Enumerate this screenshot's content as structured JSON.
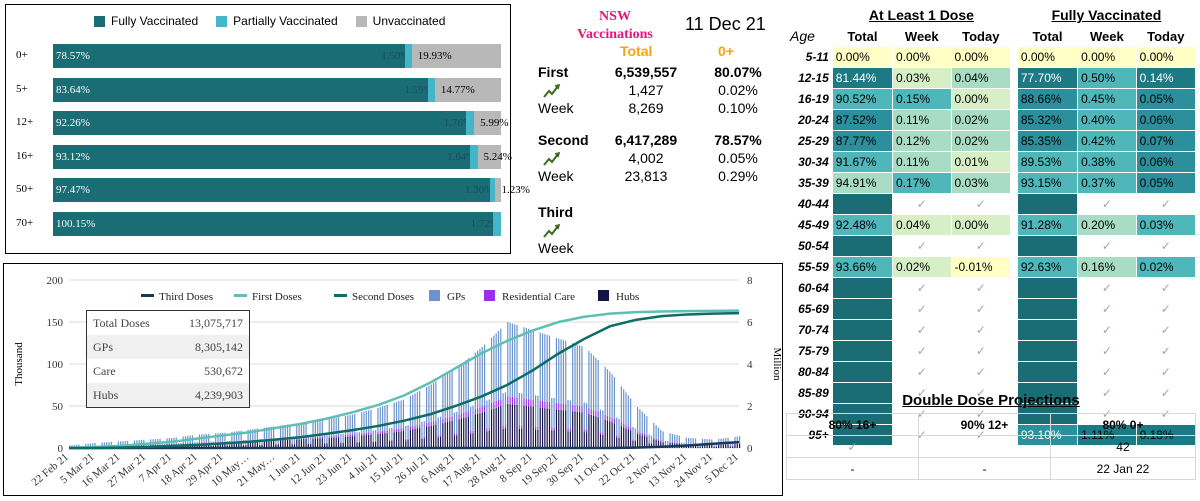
{
  "colors": {
    "full": "#1a6d74",
    "partial": "#45b6c8",
    "unvax": "#b8b8b8",
    "third": "#183a5a",
    "first": "#5fbfb4",
    "second": "#0f6b66",
    "gps": "#6a94cf",
    "care": "#9b30e8",
    "hubs": "#15124a",
    "pink": "#e6137a",
    "orange": "#f5a40f"
  },
  "panel1": {
    "legend": [
      {
        "label": "Fully Vaccinated",
        "color_key": "full"
      },
      {
        "label": "Partially Vaccinated",
        "color_key": "partial"
      },
      {
        "label": "Unvaccinated",
        "color_key": "unvax"
      }
    ],
    "chart_data": {
      "type": "bar",
      "orientation": "horizontal-stacked",
      "categories": [
        "0+",
        "5+",
        "12+",
        "16+",
        "50+",
        "70+"
      ],
      "series": [
        {
          "name": "Fully Vaccinated",
          "values": [
            78.57,
            83.64,
            92.26,
            93.12,
            97.47,
            100.15
          ],
          "labels": [
            "78.57%",
            "83.64%",
            "92.26%",
            "93.12%",
            "97.47%",
            "100.15%"
          ]
        },
        {
          "name": "Partially Vaccinated",
          "values": [
            1.5,
            1.59,
            1.76,
            1.64,
            1.3,
            1.72
          ],
          "labels": [
            "1.50%",
            "1.59%",
            "1.76%",
            "1.64%",
            "1.30%",
            "1.72%"
          ]
        },
        {
          "name": "Unvaccinated",
          "values": [
            19.93,
            14.77,
            5.99,
            5.24,
            1.23,
            0
          ],
          "labels": [
            "19.93%",
            "14.77%",
            "5.99%",
            "5.24%",
            "1.23%",
            ""
          ]
        }
      ]
    }
  },
  "panel2": {
    "title_line1": "NSW",
    "title_line2": "Vaccinations",
    "date": "11 Dec 21",
    "col_total": "Total",
    "col_0plus": "0+",
    "first": {
      "label": "First",
      "total": "6,539,557",
      "pct": "80.07%",
      "today": "1,427",
      "today_pct": "0.02%",
      "week_label": "Week",
      "week": "8,269",
      "week_pct": "0.10%"
    },
    "second": {
      "label": "Second",
      "total": "6,417,289",
      "pct": "78.57%",
      "today": "4,002",
      "today_pct": "0.05%",
      "week_label": "Week",
      "week": "23,813",
      "week_pct": "0.29%"
    },
    "third": {
      "label": "Third",
      "week_label": "Week"
    },
    "trend_icon": "trend-up-icon"
  },
  "panel3": {
    "stats": [
      {
        "label": "Total Doses",
        "value": "13,075,717"
      },
      {
        "label": "GPs",
        "value": "8,305,142"
      },
      {
        "label": "Care",
        "value": "530,672"
      },
      {
        "label": "Hubs",
        "value": "4,239,903"
      }
    ],
    "chart_data": {
      "type": "bar+line",
      "legend": [
        "Third Doses",
        "First Doses",
        "Second Doses",
        "GPs",
        "Residential Care",
        "Hubs"
      ],
      "ylabel_left": "Thousand",
      "ylabel_right": "Million",
      "ylim_left": [
        0,
        200
      ],
      "yticks_left": [
        "0",
        "50",
        "100",
        "150",
        "200"
      ],
      "ylim_right": [
        0,
        8
      ],
      "yticks_right": [
        "0",
        "2",
        "4",
        "6",
        "8"
      ],
      "xticks": [
        "22 Feb 21",
        "5 Mar 21",
        "16 Mar 21",
        "27 Mar 21",
        "7 Apr 21",
        "18 Apr 21",
        "29 Apr 21",
        "10 May…",
        "21 May…",
        "1 Jun 21",
        "12 Jun 21",
        "23 Jun 21",
        "4 Jul 21",
        "15 Jul 21",
        "26 Jul 21",
        "6 Aug 21",
        "17 Aug 21",
        "28 Aug 21",
        "8 Sep 21",
        "19 Sep 21",
        "30 Sep 21",
        "11 Oct 21",
        "22 Oct 21",
        "2 Nov 21",
        "13 Nov 21",
        "24 Nov 21",
        "5 Dec 21"
      ],
      "first_doses_million": [
        0,
        0.05,
        0.1,
        0.2,
        0.3,
        0.45,
        0.6,
        0.75,
        0.95,
        1.15,
        1.4,
        1.7,
        2.05,
        2.5,
        3.1,
        3.8,
        4.5,
        5.1,
        5.6,
        6.0,
        6.25,
        6.4,
        6.47,
        6.5,
        6.52,
        6.53,
        6.54
      ],
      "second_doses_million": [
        0,
        0,
        0.02,
        0.05,
        0.1,
        0.15,
        0.22,
        0.3,
        0.4,
        0.52,
        0.68,
        0.85,
        1.05,
        1.3,
        1.6,
        2.0,
        2.45,
        3.0,
        3.7,
        4.5,
        5.2,
        5.8,
        6.1,
        6.28,
        6.36,
        6.4,
        6.42
      ],
      "third_doses_million": [
        0,
        0,
        0,
        0,
        0,
        0,
        0,
        0,
        0,
        0,
        0,
        0,
        0,
        0,
        0,
        0,
        0,
        0,
        0,
        0,
        0,
        0,
        0.02,
        0.06,
        0.12,
        0.2,
        0.28
      ],
      "daily_doses_thousand": [
        3,
        6,
        8,
        10,
        12,
        16,
        18,
        22,
        26,
        30,
        34,
        40,
        48,
        58,
        75,
        95,
        120,
        150,
        140,
        130,
        120,
        90,
        50,
        20,
        12,
        10,
        14
      ]
    }
  },
  "panel4": {
    "group1": "At Least 1 Dose",
    "group2": "Fully Vaccinated",
    "age_header": "Age",
    "sub_headers": [
      "Total",
      "Week",
      "Today",
      "Total",
      "Week",
      "Today"
    ],
    "check_icon": "✓",
    "rows": [
      {
        "age": "5-11",
        "v": [
          "0.00%",
          "0.00%",
          "0.00%",
          "0.00%",
          "0.00%",
          "0.00%"
        ],
        "t": [
          0,
          0,
          0,
          0,
          0,
          0
        ]
      },
      {
        "age": "12-15",
        "v": [
          "81.44%",
          "0.03%",
          "0.04%",
          "77.70%",
          "0.50%",
          "0.14%"
        ],
        "t": [
          0.86,
          0.1,
          0.3,
          0.85,
          0.5,
          0.9
        ]
      },
      {
        "age": "16-19",
        "v": [
          "90.52%",
          "0.15%",
          "0.00%",
          "88.66%",
          "0.45%",
          "0.05%"
        ],
        "t": [
          0.5,
          0.4,
          0.05,
          0.6,
          0.5,
          0.6
        ]
      },
      {
        "age": "20-24",
        "v": [
          "87.52%",
          "0.11%",
          "0.02%",
          "85.32%",
          "0.40%",
          "0.06%"
        ],
        "t": [
          0.6,
          0.25,
          0.2,
          0.7,
          0.45,
          0.62
        ]
      },
      {
        "age": "25-29",
        "v": [
          "87.77%",
          "0.12%",
          "0.02%",
          "85.35%",
          "0.42%",
          "0.07%"
        ],
        "t": [
          0.6,
          0.3,
          0.2,
          0.7,
          0.47,
          0.65
        ]
      },
      {
        "age": "30-34",
        "v": [
          "91.67%",
          "0.11%",
          "0.01%",
          "89.53%",
          "0.38%",
          "0.06%"
        ],
        "t": [
          0.45,
          0.25,
          0.15,
          0.55,
          0.42,
          0.62
        ]
      },
      {
        "age": "35-39",
        "v": [
          "94.91%",
          "0.17%",
          "0.03%",
          "93.15%",
          "0.37%",
          "0.05%"
        ],
        "t": [
          0.35,
          0.4,
          0.3,
          0.45,
          0.42,
          0.6
        ]
      },
      {
        "age": "40-44",
        "check": true
      },
      {
        "age": "45-49",
        "v": [
          "92.48%",
          "0.04%",
          "0.00%",
          "91.28%",
          "0.20%",
          "0.03%"
        ],
        "t": [
          0.42,
          0.15,
          0.05,
          0.5,
          0.3,
          0.5
        ]
      },
      {
        "age": "50-54",
        "check": true
      },
      {
        "age": "55-59",
        "v": [
          "93.66%",
          "0.02%",
          "-0.01%",
          "92.63%",
          "0.16%",
          "0.02%"
        ],
        "t": [
          0.4,
          0.08,
          0,
          0.48,
          0.28,
          0.45
        ]
      },
      {
        "age": "60-64",
        "check": true
      },
      {
        "age": "65-69",
        "check": true
      },
      {
        "age": "70-74",
        "check": true
      },
      {
        "age": "75-79",
        "check": true
      },
      {
        "age": "80-84",
        "check": true
      },
      {
        "age": "85-89",
        "check": true
      },
      {
        "age": "90-94",
        "check": true
      },
      {
        "age": "95+",
        "v95": true,
        "v": [
          "",
          "",
          "",
          "93.10%",
          "1.11%",
          "0.18%"
        ]
      }
    ]
  },
  "panel5": {
    "title": "Double Dose Projections",
    "headers": [
      "80% 16+",
      "90% 12+",
      "80% 0+"
    ],
    "row1": [
      "✓",
      "",
      "42"
    ],
    "row2": [
      "-",
      "-",
      "22 Jan 22"
    ]
  }
}
